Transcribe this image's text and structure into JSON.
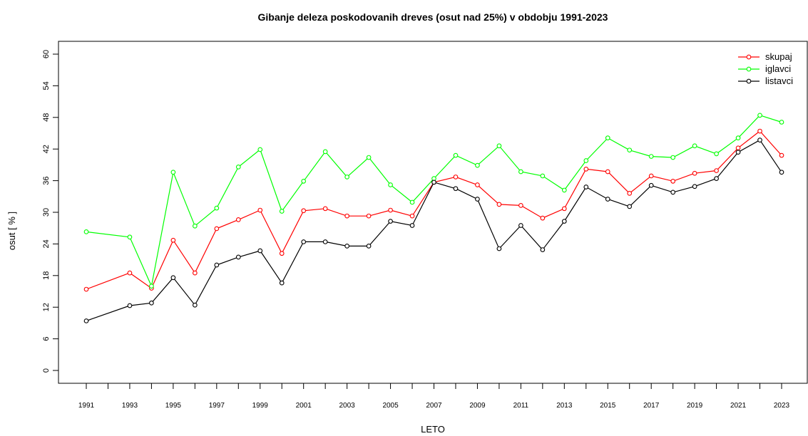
{
  "chart_data": {
    "type": "line",
    "title": "Gibanje deleza poskodovanih dreves (osut nad 25%) v obdobju 1991-2023",
    "xlabel": "LETO",
    "ylabel": "osut [ % ]",
    "ylim": [
      0,
      60
    ],
    "yticks": [
      0,
      6,
      12,
      18,
      24,
      30,
      36,
      42,
      48,
      54,
      60
    ],
    "xlim": [
      1991,
      2023
    ],
    "xtick_labels": [
      "1991",
      "1993",
      "1995",
      "1997",
      "1999",
      "2001",
      "2003",
      "2005",
      "2007",
      "2009",
      "2011",
      "2013",
      "2015",
      "2017",
      "2019",
      "2021",
      "2023"
    ],
    "grid": false,
    "legend_position": "top-right",
    "series": [
      {
        "name": "skupaj",
        "color": "#ff0000",
        "x": [
          1991,
          1993,
          1994,
          1995,
          1996,
          1997,
          1998,
          1999,
          2000,
          2001,
          2002,
          2003,
          2004,
          2005,
          2006,
          2007,
          2008,
          2009,
          2010,
          2011,
          2012,
          2013,
          2014,
          2015,
          2016,
          2017,
          2018,
          2019,
          2020,
          2021,
          2022,
          2023
        ],
        "values": [
          15.4,
          18.5,
          15.6,
          24.7,
          18.5,
          26.9,
          28.6,
          30.4,
          22.2,
          30.3,
          30.7,
          29.3,
          29.3,
          30.4,
          29.3,
          35.7,
          36.7,
          35.2,
          31.5,
          31.3,
          28.9,
          30.7,
          38.2,
          37.7,
          33.6,
          36.9,
          35.9,
          37.4,
          37.9,
          42.2,
          45.4,
          40.8
        ]
      },
      {
        "name": "iglavci",
        "color": "#00ff00",
        "x": [
          1991,
          1993,
          1994,
          1995,
          1996,
          1997,
          1998,
          1999,
          2000,
          2001,
          2002,
          2003,
          2004,
          2005,
          2006,
          2007,
          2008,
          2009,
          2010,
          2011,
          2012,
          2013,
          2014,
          2015,
          2016,
          2017,
          2018,
          2019,
          2020,
          2021,
          2022,
          2023
        ],
        "values": [
          26.3,
          25.3,
          16.0,
          37.6,
          27.4,
          30.8,
          38.6,
          41.9,
          30.2,
          35.9,
          41.5,
          36.7,
          40.4,
          35.2,
          31.9,
          36.4,
          40.8,
          38.9,
          42.6,
          37.7,
          36.9,
          34.2,
          39.8,
          44.1,
          41.8,
          40.6,
          40.4,
          42.6,
          41.1,
          44.1,
          48.4,
          47.1
        ]
      },
      {
        "name": "listavci",
        "color": "#000000",
        "x": [
          1991,
          1993,
          1994,
          1995,
          1996,
          1997,
          1998,
          1999,
          2000,
          2001,
          2002,
          2003,
          2004,
          2005,
          2006,
          2007,
          2008,
          2009,
          2010,
          2011,
          2012,
          2013,
          2014,
          2015,
          2016,
          2017,
          2018,
          2019,
          2020,
          2021,
          2022,
          2023
        ],
        "values": [
          9.4,
          12.3,
          12.8,
          17.6,
          12.4,
          20.0,
          21.5,
          22.7,
          16.6,
          24.4,
          24.4,
          23.6,
          23.6,
          28.3,
          27.5,
          35.7,
          34.5,
          32.5,
          23.1,
          27.5,
          22.9,
          28.3,
          34.8,
          32.5,
          31.1,
          35.1,
          33.8,
          34.9,
          36.4,
          41.4,
          43.7,
          37.6
        ]
      }
    ]
  }
}
